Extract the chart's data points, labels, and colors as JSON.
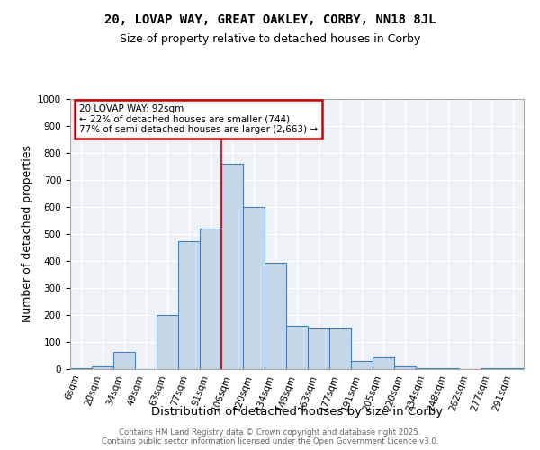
{
  "title1": "20, LOVAP WAY, GREAT OAKLEY, CORBY, NN18 8JL",
  "title2": "Size of property relative to detached houses in Corby",
  "xlabel": "Distribution of detached houses by size in Corby",
  "ylabel": "Number of detached properties",
  "bin_labels": [
    "6sqm",
    "20sqm",
    "34sqm",
    "49sqm",
    "63sqm",
    "77sqm",
    "91sqm",
    "106sqm",
    "120sqm",
    "134sqm",
    "148sqm",
    "163sqm",
    "177sqm",
    "191sqm",
    "205sqm",
    "220sqm",
    "234sqm",
    "248sqm",
    "262sqm",
    "277sqm",
    "291sqm"
  ],
  "bar_values": [
    5,
    10,
    65,
    0,
    200,
    475,
    520,
    760,
    600,
    395,
    160,
    155,
    155,
    30,
    45,
    10,
    5,
    5,
    0,
    5,
    5
  ],
  "bar_color": "#c5d8e8",
  "bar_edge_color": "#4a7fb5",
  "bar_edge_width": 0.8,
  "vline_x_index": 6.5,
  "vline_color": "#cc0000",
  "annotation_text": "20 LOVAP WAY: 92sqm\n← 22% of detached houses are smaller (744)\n77% of semi-detached houses are larger (2,663) →",
  "annotation_box_color": "#ffffff",
  "annotation_box_edge_color": "#cc0000",
  "ylim": [
    0,
    1000
  ],
  "yticks": [
    0,
    100,
    200,
    300,
    400,
    500,
    600,
    700,
    800,
    900,
    1000
  ],
  "background_color": "#eef2f7",
  "footer": "Contains HM Land Registry data © Crown copyright and database right 2025.\nContains public sector information licensed under the Open Government Licence v3.0.",
  "title_fontsize": 10,
  "subtitle_fontsize": 9,
  "axis_label_fontsize": 9,
  "tick_fontsize": 7.5
}
